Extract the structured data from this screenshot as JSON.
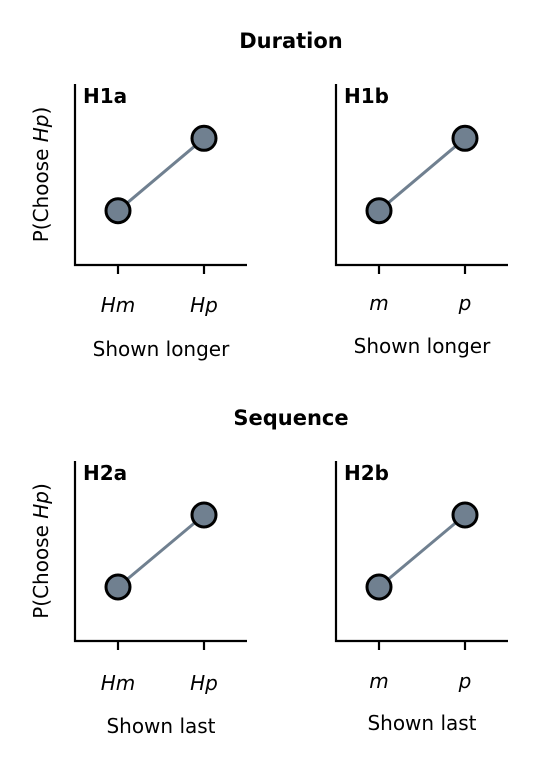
{
  "sections": [
    {
      "title": "Duration"
    },
    {
      "title": "Sequence"
    }
  ],
  "chart_data": [
    {
      "type": "line",
      "panel_label": "H1a",
      "section": "Duration",
      "categories": [
        "Hm",
        "Hp"
      ],
      "values": [
        0.3,
        0.7
      ],
      "xlabel": "Shown longer",
      "ylabel_prefix": "P(Choose ",
      "ylabel_italic": "Hp",
      "ylabel_suffix": ")",
      "ylim": [
        0,
        1
      ],
      "grid": false,
      "series_color": "#708090"
    },
    {
      "type": "line",
      "panel_label": "H1b",
      "section": "Duration",
      "categories": [
        "m",
        "p"
      ],
      "values": [
        0.3,
        0.7
      ],
      "xlabel": "Shown longer",
      "ylabel_prefix": "",
      "ylabel_italic": "",
      "ylabel_suffix": "",
      "ylim": [
        0,
        1
      ],
      "grid": false,
      "series_color": "#708090"
    },
    {
      "type": "line",
      "panel_label": "H2a",
      "section": "Sequence",
      "categories": [
        "Hm",
        "Hp"
      ],
      "values": [
        0.3,
        0.7
      ],
      "xlabel": "Shown last",
      "ylabel_prefix": "P(Choose ",
      "ylabel_italic": "Hp",
      "ylabel_suffix": ")",
      "ylim": [
        0,
        1
      ],
      "grid": false,
      "series_color": "#708090"
    },
    {
      "type": "line",
      "panel_label": "H2b",
      "section": "Sequence",
      "categories": [
        "m",
        "p"
      ],
      "values": [
        0.3,
        0.7
      ],
      "xlabel": "Shown last",
      "ylabel_prefix": "",
      "ylabel_italic": "",
      "ylabel_suffix": "",
      "ylim": [
        0,
        1
      ],
      "grid": false,
      "series_color": "#708090"
    }
  ]
}
